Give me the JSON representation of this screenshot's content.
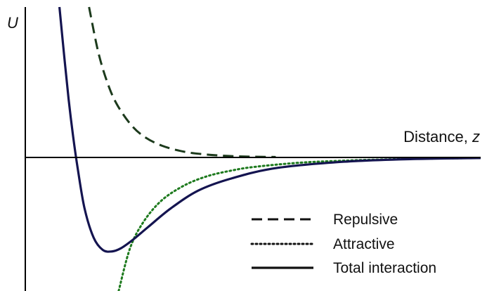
{
  "chart_data": {
    "type": "line",
    "title": "",
    "ylabel": "U",
    "xlabel_prefix": "Distance, ",
    "xlabel_var": "z",
    "xlim": [
      0,
      10
    ],
    "ylim": [
      -2.5,
      3.2
    ],
    "grid": false,
    "legend_position": "bottom-right",
    "series": [
      {
        "name": "Repulsive",
        "style": "dashed",
        "color": "#1c3a1c",
        "x": [
          1.4,
          1.6,
          1.8,
          2.0,
          2.3,
          2.6,
          3.0,
          3.5,
          4.0,
          4.5,
          5.0,
          5.5
        ],
        "y": [
          3.2,
          2.25,
          1.6,
          1.15,
          0.72,
          0.45,
          0.25,
          0.12,
          0.06,
          0.03,
          0.015,
          0.01
        ]
      },
      {
        "name": "Attractive",
        "style": "dotted",
        "color": "#1e7a1e",
        "x": [
          2.05,
          2.3,
          2.6,
          3.0,
          3.5,
          4.0,
          4.5,
          5.0,
          6.0,
          7.0,
          8.0,
          9.0,
          10.0
        ],
        "y": [
          -2.5,
          -1.7,
          -1.2,
          -0.8,
          -0.52,
          -0.35,
          -0.25,
          -0.18,
          -0.1,
          -0.06,
          -0.035,
          -0.02,
          -0.01
        ]
      },
      {
        "name": "Total interaction",
        "style": "solid",
        "color": "#141450",
        "x": [
          0.75,
          0.85,
          0.95,
          1.05,
          1.15,
          1.3,
          1.5,
          1.7,
          1.9,
          2.1,
          2.35,
          2.7,
          3.2,
          3.8,
          4.5,
          5.5,
          7.0,
          8.5,
          10.0
        ],
        "y": [
          3.2,
          2.2,
          1.25,
          0.45,
          -0.2,
          -0.95,
          -1.5,
          -1.73,
          -1.76,
          -1.7,
          -1.55,
          -1.3,
          -0.95,
          -0.62,
          -0.4,
          -0.2,
          -0.08,
          -0.03,
          -0.01
        ]
      }
    ]
  }
}
